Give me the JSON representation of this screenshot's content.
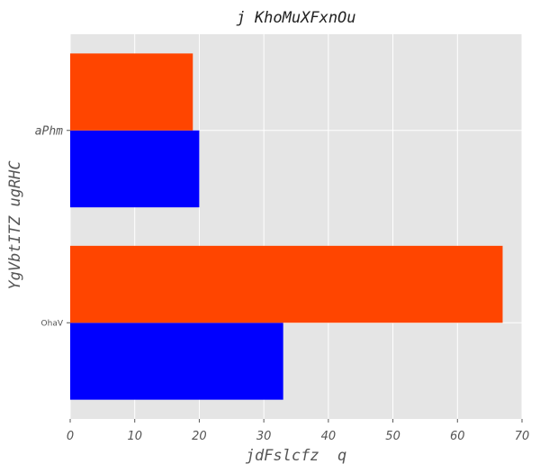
{
  "chart_data": {
    "type": "bar",
    "orientation": "horizontal",
    "title": "j KhoMuXFxnOu",
    "xlabel": "jdFslcfz  q",
    "ylabel": "YgVbtITZ ugRHC",
    "categories": [
      "OhaV",
      "aPhm"
    ],
    "series": [
      {
        "color": "#0000ff",
        "values": [
          33,
          20
        ]
      },
      {
        "color": "#ff4500",
        "values": [
          67,
          19
        ]
      }
    ],
    "xlim": [
      0,
      70
    ],
    "xticks": [
      0,
      10,
      20,
      30,
      40,
      50,
      60,
      70
    ],
    "grid": true,
    "background": "#e5e5e5"
  }
}
